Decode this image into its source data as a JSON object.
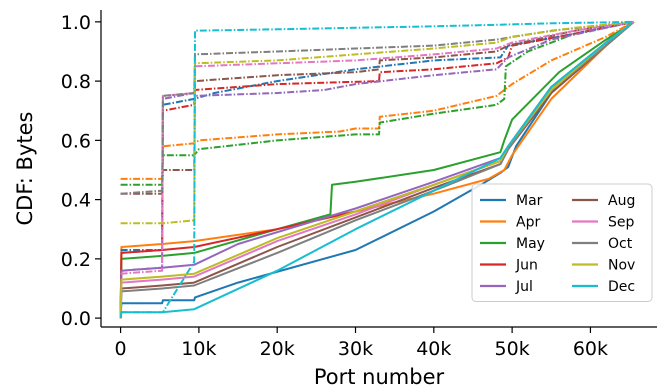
{
  "chart_data": {
    "type": "line",
    "title": "",
    "xlabel": "Port number",
    "ylabel": "CDF: Bytes",
    "xlim": [
      -2500,
      68500
    ],
    "ylim": [
      -0.03,
      1.04
    ],
    "xticks": [
      0,
      10000,
      20000,
      30000,
      40000,
      50000,
      60000
    ],
    "xtick_labels": [
      "0",
      "10k",
      "20k",
      "30k",
      "40k",
      "50k",
      "60k"
    ],
    "yticks": [
      0.0,
      0.2,
      0.4,
      0.6,
      0.8,
      1.0
    ],
    "ytick_labels": [
      "0.0",
      "0.2",
      "0.4",
      "0.6",
      "0.8",
      "1.0"
    ],
    "grid": false,
    "legend_position": "lower-right",
    "legend_columns": 2,
    "series": [
      {
        "name": "Mar",
        "color": "#1f77b4",
        "style": "solid",
        "points": [
          [
            0,
            0
          ],
          [
            100,
            0.05
          ],
          [
            5300,
            0.05
          ],
          [
            5400,
            0.06
          ],
          [
            9400,
            0.06
          ],
          [
            9500,
            0.07
          ],
          [
            15000,
            0.12
          ],
          [
            30000,
            0.23
          ],
          [
            40000,
            0.36
          ],
          [
            46000,
            0.45
          ],
          [
            48500,
            0.49
          ],
          [
            49500,
            0.51
          ],
          [
            50500,
            0.58
          ],
          [
            56000,
            0.8
          ],
          [
            62000,
            0.93
          ],
          [
            65535,
            1.0
          ]
        ]
      },
      {
        "name": "Apr",
        "color": "#ff7f0e",
        "style": "solid",
        "points": [
          [
            0,
            0
          ],
          [
            100,
            0.24
          ],
          [
            5300,
            0.25
          ],
          [
            9400,
            0.26
          ],
          [
            20000,
            0.3
          ],
          [
            30000,
            0.36
          ],
          [
            40000,
            0.42
          ],
          [
            47000,
            0.47
          ],
          [
            49000,
            0.5
          ],
          [
            50000,
            0.55
          ],
          [
            55000,
            0.74
          ],
          [
            62000,
            0.92
          ],
          [
            65535,
            1.0
          ]
        ]
      },
      {
        "name": "May",
        "color": "#2ca02c",
        "style": "solid",
        "points": [
          [
            0,
            0
          ],
          [
            100,
            0.2
          ],
          [
            5300,
            0.21
          ],
          [
            9400,
            0.22
          ],
          [
            20000,
            0.3
          ],
          [
            26800,
            0.35
          ],
          [
            27000,
            0.45
          ],
          [
            30000,
            0.46
          ],
          [
            40000,
            0.5
          ],
          [
            48500,
            0.56
          ],
          [
            49000,
            0.6
          ],
          [
            50000,
            0.67
          ],
          [
            56000,
            0.83
          ],
          [
            62000,
            0.94
          ],
          [
            65535,
            1.0
          ]
        ]
      },
      {
        "name": "Jun",
        "color": "#d62728",
        "style": "solid",
        "points": [
          [
            0,
            0
          ],
          [
            100,
            0.22
          ],
          [
            5300,
            0.23
          ],
          [
            9400,
            0.24
          ],
          [
            20000,
            0.3
          ],
          [
            30000,
            0.36
          ],
          [
            40000,
            0.45
          ],
          [
            48500,
            0.53
          ],
          [
            49500,
            0.58
          ],
          [
            55000,
            0.78
          ],
          [
            62000,
            0.93
          ],
          [
            65535,
            1.0
          ]
        ]
      },
      {
        "name": "Jul",
        "color": "#9467bd",
        "style": "solid",
        "points": [
          [
            0,
            0
          ],
          [
            100,
            0.16
          ],
          [
            5300,
            0.17
          ],
          [
            9400,
            0.18
          ],
          [
            15000,
            0.25
          ],
          [
            30000,
            0.37
          ],
          [
            40000,
            0.46
          ],
          [
            48500,
            0.54
          ],
          [
            49500,
            0.58
          ],
          [
            55000,
            0.78
          ],
          [
            62000,
            0.93
          ],
          [
            65535,
            1.0
          ]
        ]
      },
      {
        "name": "Aug",
        "color": "#8c564b",
        "style": "solid",
        "points": [
          [
            0,
            0
          ],
          [
            100,
            0.1
          ],
          [
            5300,
            0.11
          ],
          [
            9400,
            0.12
          ],
          [
            20000,
            0.24
          ],
          [
            30000,
            0.34
          ],
          [
            40000,
            0.44
          ],
          [
            48500,
            0.52
          ],
          [
            49500,
            0.57
          ],
          [
            55000,
            0.76
          ],
          [
            62000,
            0.92
          ],
          [
            65535,
            1.0
          ]
        ]
      },
      {
        "name": "Sep",
        "color": "#e377c2",
        "style": "solid",
        "points": [
          [
            0,
            0
          ],
          [
            100,
            0.12
          ],
          [
            5300,
            0.13
          ],
          [
            9400,
            0.14
          ],
          [
            20000,
            0.26
          ],
          [
            30000,
            0.35
          ],
          [
            40000,
            0.45
          ],
          [
            48500,
            0.53
          ],
          [
            49500,
            0.58
          ],
          [
            55000,
            0.77
          ],
          [
            62000,
            0.93
          ],
          [
            65535,
            1.0
          ]
        ]
      },
      {
        "name": "Oct",
        "color": "#7f7f7f",
        "style": "solid",
        "points": [
          [
            0,
            0
          ],
          [
            100,
            0.09
          ],
          [
            5300,
            0.1
          ],
          [
            9400,
            0.11
          ],
          [
            20000,
            0.22
          ],
          [
            30000,
            0.33
          ],
          [
            40000,
            0.43
          ],
          [
            48500,
            0.52
          ],
          [
            49500,
            0.57
          ],
          [
            55000,
            0.77
          ],
          [
            62000,
            0.92
          ],
          [
            65535,
            1.0
          ]
        ]
      },
      {
        "name": "Nov",
        "color": "#bcbd22",
        "style": "solid",
        "points": [
          [
            0,
            0
          ],
          [
            100,
            0.13
          ],
          [
            5300,
            0.14
          ],
          [
            9400,
            0.15
          ],
          [
            20000,
            0.27
          ],
          [
            30000,
            0.36
          ],
          [
            40000,
            0.45
          ],
          [
            48500,
            0.53
          ],
          [
            49500,
            0.58
          ],
          [
            55000,
            0.77
          ],
          [
            62000,
            0.93
          ],
          [
            65535,
            1.0
          ]
        ]
      },
      {
        "name": "Dec",
        "color": "#17becf",
        "style": "solid",
        "points": [
          [
            0,
            0
          ],
          [
            100,
            0.02
          ],
          [
            5300,
            0.02
          ],
          [
            9400,
            0.03
          ],
          [
            20000,
            0.16
          ],
          [
            30000,
            0.3
          ],
          [
            40000,
            0.43
          ],
          [
            48500,
            0.54
          ],
          [
            49500,
            0.58
          ],
          [
            55000,
            0.78
          ],
          [
            62000,
            0.93
          ],
          [
            65535,
            1.0
          ]
        ]
      },
      {
        "name": "",
        "color": "#1f77b4",
        "style": "dashdot",
        "points": [
          [
            0,
            0.23
          ],
          [
            5300,
            0.23
          ],
          [
            5400,
            0.72
          ],
          [
            9400,
            0.74
          ],
          [
            12000,
            0.76
          ],
          [
            20000,
            0.8
          ],
          [
            30000,
            0.84
          ],
          [
            40000,
            0.87
          ],
          [
            48500,
            0.88
          ],
          [
            49500,
            0.92
          ],
          [
            56000,
            0.95
          ],
          [
            65535,
            1.0
          ]
        ]
      },
      {
        "name": "",
        "color": "#ff7f0e",
        "style": "dashdot",
        "points": [
          [
            0,
            0.47
          ],
          [
            5300,
            0.47
          ],
          [
            5400,
            0.58
          ],
          [
            9400,
            0.59
          ],
          [
            10000,
            0.6
          ],
          [
            20000,
            0.62
          ],
          [
            28000,
            0.63
          ],
          [
            30000,
            0.64
          ],
          [
            33000,
            0.64
          ],
          [
            33100,
            0.68
          ],
          [
            40000,
            0.7
          ],
          [
            48000,
            0.75
          ],
          [
            49000,
            0.77
          ],
          [
            50000,
            0.79
          ],
          [
            55000,
            0.87
          ],
          [
            62000,
            0.95
          ],
          [
            65535,
            1.0
          ]
        ]
      },
      {
        "name": "",
        "color": "#2ca02c",
        "style": "dashdot",
        "points": [
          [
            0,
            0.45
          ],
          [
            5300,
            0.45
          ],
          [
            5400,
            0.55
          ],
          [
            9400,
            0.55
          ],
          [
            10000,
            0.57
          ],
          [
            20000,
            0.6
          ],
          [
            30000,
            0.62
          ],
          [
            33000,
            0.62
          ],
          [
            33100,
            0.66
          ],
          [
            40000,
            0.69
          ],
          [
            48000,
            0.72
          ],
          [
            49000,
            0.74
          ],
          [
            49200,
            0.85
          ],
          [
            52000,
            0.9
          ],
          [
            58000,
            0.96
          ],
          [
            65535,
            1.0
          ]
        ]
      },
      {
        "name": "",
        "color": "#d62728",
        "style": "dashdot",
        "points": [
          [
            0,
            0.22
          ],
          [
            5300,
            0.23
          ],
          [
            5400,
            0.7
          ],
          [
            9400,
            0.72
          ],
          [
            9500,
            0.77
          ],
          [
            20000,
            0.79
          ],
          [
            33000,
            0.8
          ],
          [
            33100,
            0.83
          ],
          [
            40000,
            0.84
          ],
          [
            48000,
            0.86
          ],
          [
            49500,
            0.88
          ],
          [
            50000,
            0.92
          ],
          [
            58000,
            0.96
          ],
          [
            65535,
            1.0
          ]
        ]
      },
      {
        "name": "",
        "color": "#9467bd",
        "style": "dashdot",
        "points": [
          [
            0,
            0.16
          ],
          [
            5300,
            0.17
          ],
          [
            5400,
            0.74
          ],
          [
            9400,
            0.76
          ],
          [
            9500,
            0.75
          ],
          [
            20000,
            0.76
          ],
          [
            26000,
            0.77
          ],
          [
            30000,
            0.79
          ],
          [
            40000,
            0.82
          ],
          [
            48000,
            0.84
          ],
          [
            49500,
            0.88
          ],
          [
            55000,
            0.94
          ],
          [
            62000,
            0.98
          ],
          [
            65535,
            1.0
          ]
        ]
      },
      {
        "name": "",
        "color": "#8c564b",
        "style": "dashdot",
        "points": [
          [
            0,
            0.42
          ],
          [
            5300,
            0.42
          ],
          [
            5400,
            0.5
          ],
          [
            9400,
            0.5
          ],
          [
            9500,
            0.8
          ],
          [
            20000,
            0.82
          ],
          [
            30000,
            0.83
          ],
          [
            33000,
            0.84
          ],
          [
            33100,
            0.87
          ],
          [
            40000,
            0.88
          ],
          [
            48000,
            0.9
          ],
          [
            49500,
            0.92
          ],
          [
            58000,
            0.97
          ],
          [
            65535,
            1.0
          ]
        ]
      },
      {
        "name": "",
        "color": "#e377c2",
        "style": "dashdot",
        "points": [
          [
            0,
            0.15
          ],
          [
            5300,
            0.16
          ],
          [
            5400,
            0.75
          ],
          [
            9400,
            0.76
          ],
          [
            9500,
            0.85
          ],
          [
            20000,
            0.86
          ],
          [
            30000,
            0.87
          ],
          [
            40000,
            0.89
          ],
          [
            48000,
            0.91
          ],
          [
            50000,
            0.93
          ],
          [
            58000,
            0.97
          ],
          [
            65535,
            1.0
          ]
        ]
      },
      {
        "name": "",
        "color": "#7f7f7f",
        "style": "dashdot",
        "points": [
          [
            0,
            0.42
          ],
          [
            5300,
            0.43
          ],
          [
            5400,
            0.75
          ],
          [
            9400,
            0.76
          ],
          [
            9500,
            0.89
          ],
          [
            20000,
            0.9
          ],
          [
            30000,
            0.91
          ],
          [
            40000,
            0.92
          ],
          [
            48000,
            0.94
          ],
          [
            55000,
            0.97
          ],
          [
            65535,
            1.0
          ]
        ]
      },
      {
        "name": "",
        "color": "#bcbd22",
        "style": "dashdot",
        "points": [
          [
            0,
            0.32
          ],
          [
            5300,
            0.32
          ],
          [
            5400,
            0.32
          ],
          [
            9400,
            0.33
          ],
          [
            9500,
            0.86
          ],
          [
            20000,
            0.87
          ],
          [
            30000,
            0.89
          ],
          [
            40000,
            0.91
          ],
          [
            48000,
            0.93
          ],
          [
            50000,
            0.95
          ],
          [
            58000,
            0.98
          ],
          [
            65535,
            1.0
          ]
        ]
      },
      {
        "name": "",
        "color": "#17becf",
        "style": "dashdot",
        "points": [
          [
            0,
            0.02
          ],
          [
            5300,
            0.02
          ],
          [
            5400,
            0.02
          ],
          [
            9400,
            0.19
          ],
          [
            9500,
            0.97
          ],
          [
            20000,
            0.975
          ],
          [
            30000,
            0.98
          ],
          [
            40000,
            0.985
          ],
          [
            48000,
            0.99
          ],
          [
            55000,
            0.995
          ],
          [
            65535,
            1.0
          ]
        ]
      }
    ]
  }
}
